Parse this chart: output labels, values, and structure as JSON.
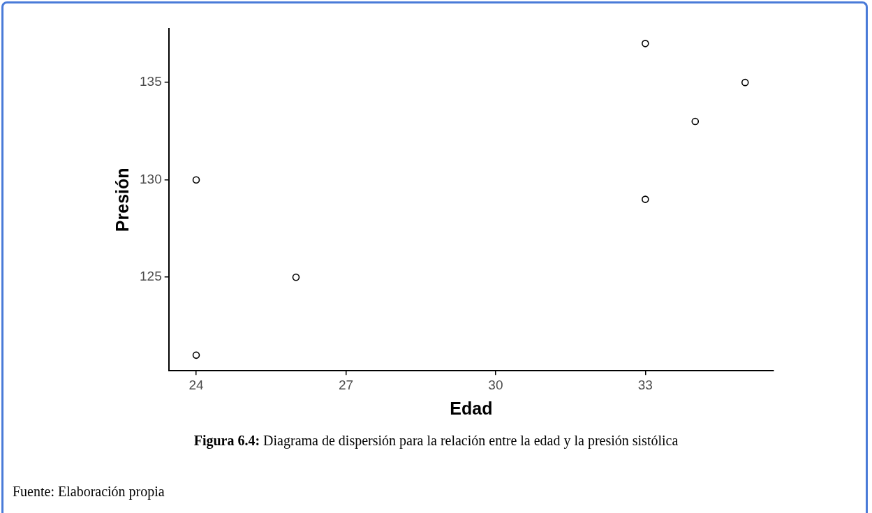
{
  "chart_data": {
    "type": "scatter",
    "xlabel": "Edad",
    "ylabel": "Presión",
    "x": [
      24,
      24,
      26,
      33,
      33,
      34,
      35
    ],
    "values": [
      121,
      130,
      125,
      137,
      129,
      133,
      135
    ],
    "color": "#000000",
    "marker": "circle",
    "grid": false,
    "legend": false,
    "xlim": [
      23.45,
      35.57
    ],
    "xticks": [
      24,
      27,
      30,
      33
    ],
    "ylim": [
      120.2,
      137.75
    ],
    "yticks": [
      125,
      130,
      135
    ],
    "annotations": [
      "Figura 6.4: Diagrama de dispersión para la relación entre la edad y la presión sistólica",
      "Fuente: Elaboración propia"
    ]
  }
}
